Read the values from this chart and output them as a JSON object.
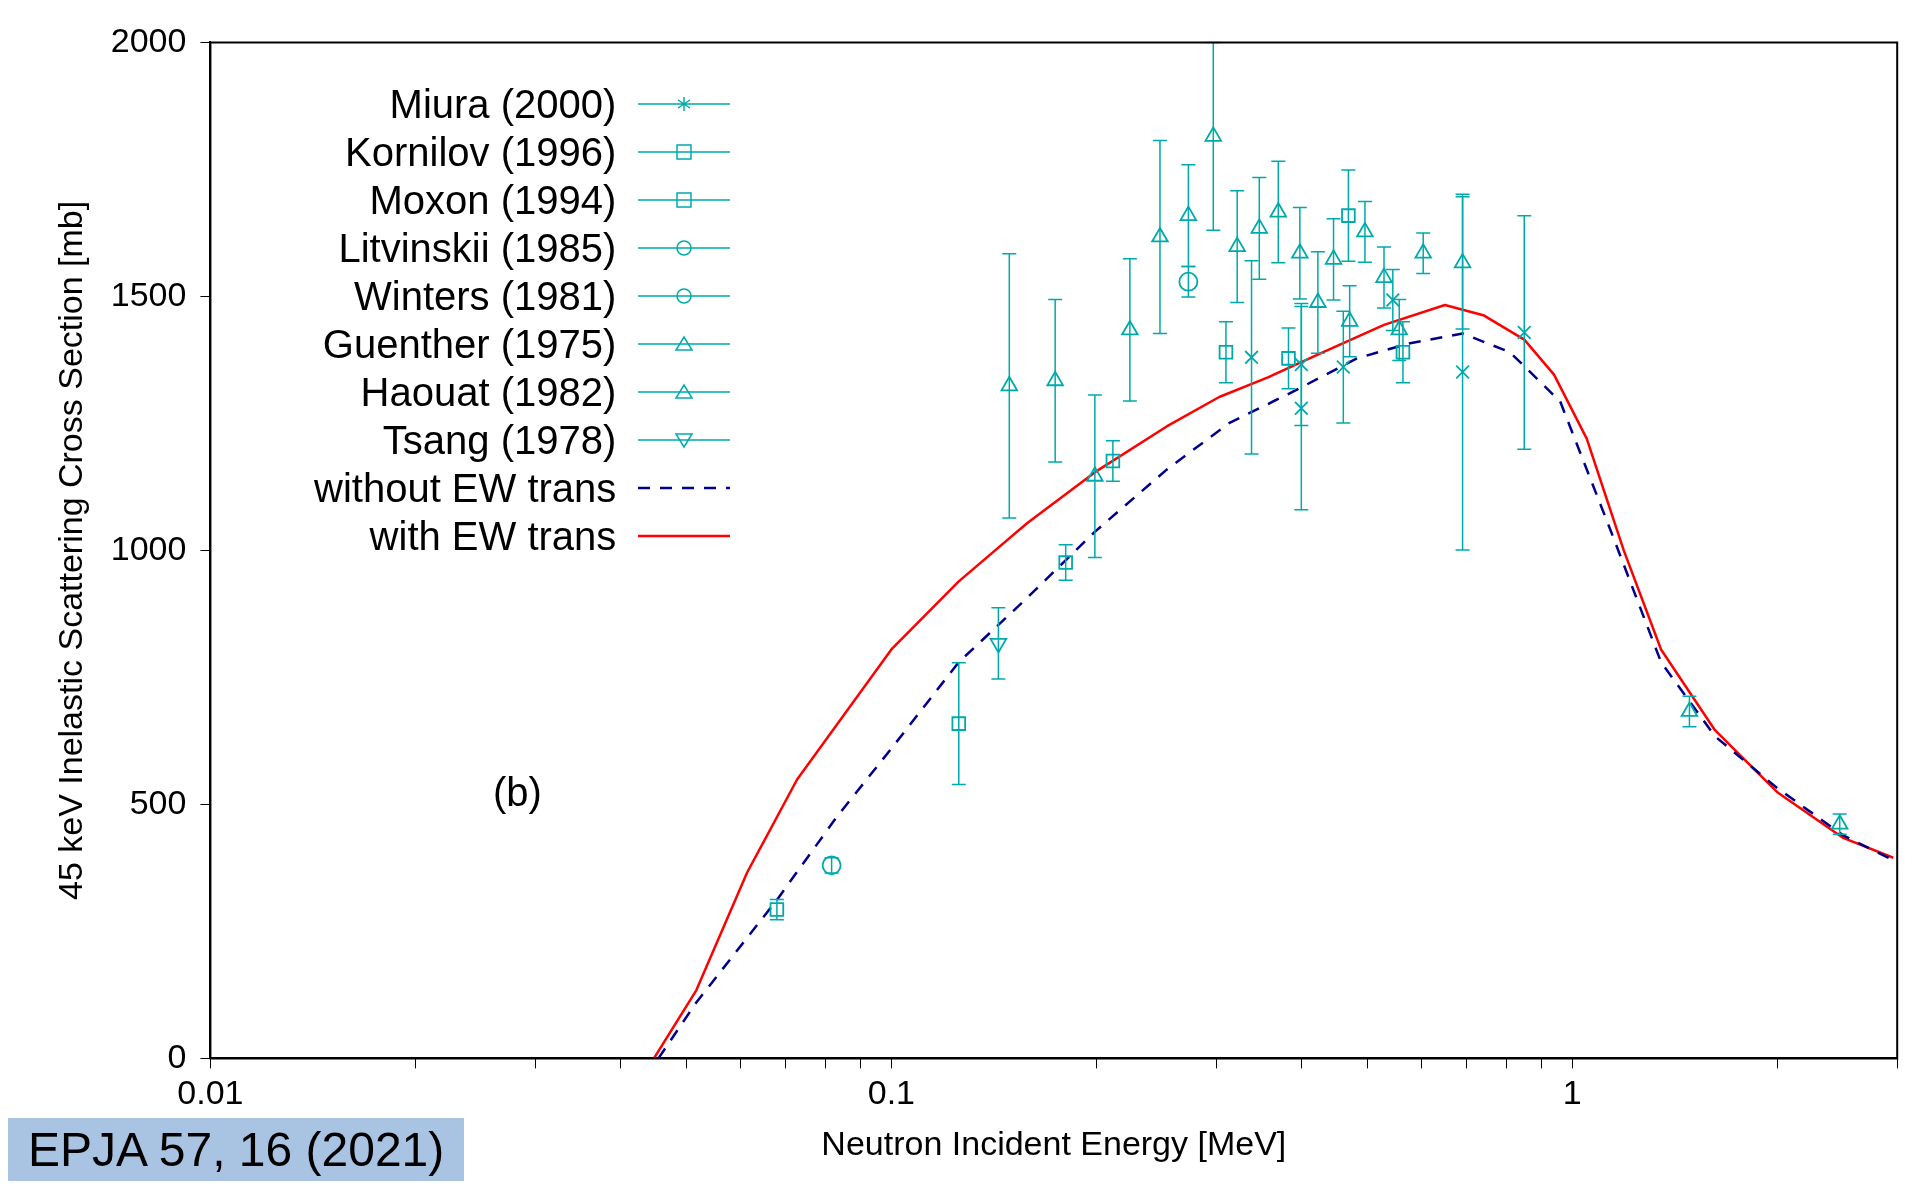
{
  "chart_data": {
    "type": "scatter",
    "xlabel": "Neutron Incident Energy [MeV]",
    "ylabel": "45 keV Inelastic Scattering Cross Section [mb]",
    "log": "x",
    "grid": false,
    "legend": "top left",
    "xlim": [
      0.01,
      3
    ],
    "ylim": [
      0,
      2000
    ],
    "xticks": [
      0.01,
      {
        "value": 0.02,
        "label": null
      },
      {
        "value": 0.03,
        "label": null
      },
      {
        "value": 0.04,
        "label": null
      },
      {
        "value": 0.05,
        "label": null
      },
      {
        "value": 0.06,
        "label": null
      },
      {
        "value": 0.07,
        "label": null
      },
      {
        "value": 0.08,
        "label": null
      },
      {
        "value": 0.09,
        "label": null
      },
      0.1,
      {
        "value": 0.2,
        "label": null
      },
      {
        "value": 0.3,
        "label": null
      },
      {
        "value": 0.4,
        "label": null
      },
      {
        "value": 0.5,
        "label": null
      },
      {
        "value": 0.6,
        "label": null
      },
      {
        "value": 0.7,
        "label": null
      },
      {
        "value": 0.8,
        "label": null
      },
      {
        "value": 0.9,
        "label": null
      },
      1,
      {
        "value": 2,
        "label": null
      },
      {
        "value": 3,
        "label": null
      }
    ],
    "yticks": [
      0,
      500,
      1000,
      1500,
      2000
    ],
    "annotations": [
      "(b)",
      "EPJA 57, 16 (2021)"
    ],
    "series": [
      {
        "name": "Miura (2000)",
        "marker": "cross",
        "color": "#00aaaa",
        "x": [
          0.338,
          0.4,
          0.4,
          0.461,
          0.545,
          0.69,
          0.85
        ],
        "values": [
          1380,
          1366,
          1280,
          1361,
          1493,
          1351,
          1429
        ],
        "errors": [
          190,
          120,
          200,
          110,
          60,
          350,
          230
        ]
      },
      {
        "name": "Kornilov (1996)",
        "marker": "square",
        "color": "#00aaaa",
        "x": [
          0.31,
          0.383,
          0.469,
          0.564
        ],
        "values": [
          1390,
          1378,
          1659,
          1390
        ],
        "errors": [
          60,
          60,
          90,
          60
        ]
      },
      {
        "name": "Moxon (1994)",
        "marker": "square",
        "color": "#00aaaa",
        "x": [
          0.0679,
          0.1256,
          0.1803,
          0.2115
        ],
        "values": [
          293,
          659,
          976,
          1176
        ],
        "errors": [
          20,
          120,
          35,
          40
        ]
      },
      {
        "name": "Litvinskii (1985)",
        "marker": "circle",
        "color": "#00aaaa",
        "x": [
          0.273
        ],
        "values": [
          1529
        ],
        "errors": [
          30
        ]
      },
      {
        "name": "Winters (1981)",
        "marker": "circle",
        "color": "#00aaaa",
        "x": [
          0.0817
        ],
        "values": [
          380
        ],
        "errors": [
          15
        ]
      },
      {
        "name": "Guenther (1975)",
        "marker": "triangle",
        "color": "#00aaaa",
        "x": [
          0.149,
          0.174,
          0.199,
          0.224,
          0.248,
          0.273,
          0.297,
          0.322,
          0.347,
          0.37,
          0.398,
          0.423,
          0.446,
          0.471,
          0.496,
          0.529,
          0.557,
          0.604
        ],
        "values": [
          1324,
          1334,
          1146,
          1434,
          1617,
          1659,
          1815,
          1598,
          1634,
          1666,
          1585,
          1488,
          1573,
          1451,
          1627,
          1537,
          1434,
          1585
        ],
        "errors": [
          260,
          160,
          160,
          140,
          190,
          100,
          185,
          110,
          100,
          100,
          90,
          100,
          80,
          70,
          60,
          60,
          60,
          40
        ]
      },
      {
        "name": "Haouat (1982)",
        "marker": "triangle",
        "color": "#00aaaa",
        "x": [
          0.69,
          1.486,
          2.47
        ],
        "values": [
          1566,
          683,
          461
        ],
        "errors": [
          130,
          30,
          20
        ]
      },
      {
        "name": "Tsang (1978)",
        "marker": "triangle-down",
        "color": "#00aaaa",
        "x": [
          0.1436
        ],
        "values": [
          817
        ],
        "errors": [
          70
        ]
      },
      {
        "name": "without EW trans",
        "type": "line",
        "line_style": "dashed",
        "marker": "none",
        "color": "#00008b",
        "x": [
          0.04548,
          0.0517,
          0.0679,
          0.0832,
          0.1,
          0.1256,
          0.1584,
          0.1991,
          0.2537,
          0.3138,
          0.3883,
          0.483,
          0.574,
          0.69,
          0.81,
          0.96,
          1.14,
          1.35,
          1.62,
          2.0,
          2.5,
          2.96
        ],
        "values": [
          0,
          110,
          312,
          476,
          610,
          780,
          907,
          1037,
          1159,
          1251,
          1312,
          1378,
          1407,
          1427,
          1390,
          1293,
          1037,
          780,
          634,
          532,
          439,
          390
        ]
      },
      {
        "name": "with EW trans",
        "type": "line",
        "line_style": "solid",
        "marker": "none",
        "color": "#ff0000",
        "x": [
          0.0448,
          0.0517,
          0.0614,
          0.0727,
          0.1,
          0.1256,
          0.1584,
          0.1991,
          0.2537,
          0.303,
          0.358,
          0.43,
          0.529,
          0.65,
          0.74,
          0.85,
          0.94,
          1.05,
          1.19,
          1.35,
          1.62,
          2.0,
          2.5,
          2.96
        ],
        "values": [
          0,
          134,
          366,
          549,
          805,
          939,
          1054,
          1154,
          1244,
          1302,
          1341,
          1390,
          1444,
          1483,
          1463,
          1415,
          1346,
          1220,
          1000,
          805,
          646,
          524,
          434,
          395
        ]
      }
    ]
  }
}
